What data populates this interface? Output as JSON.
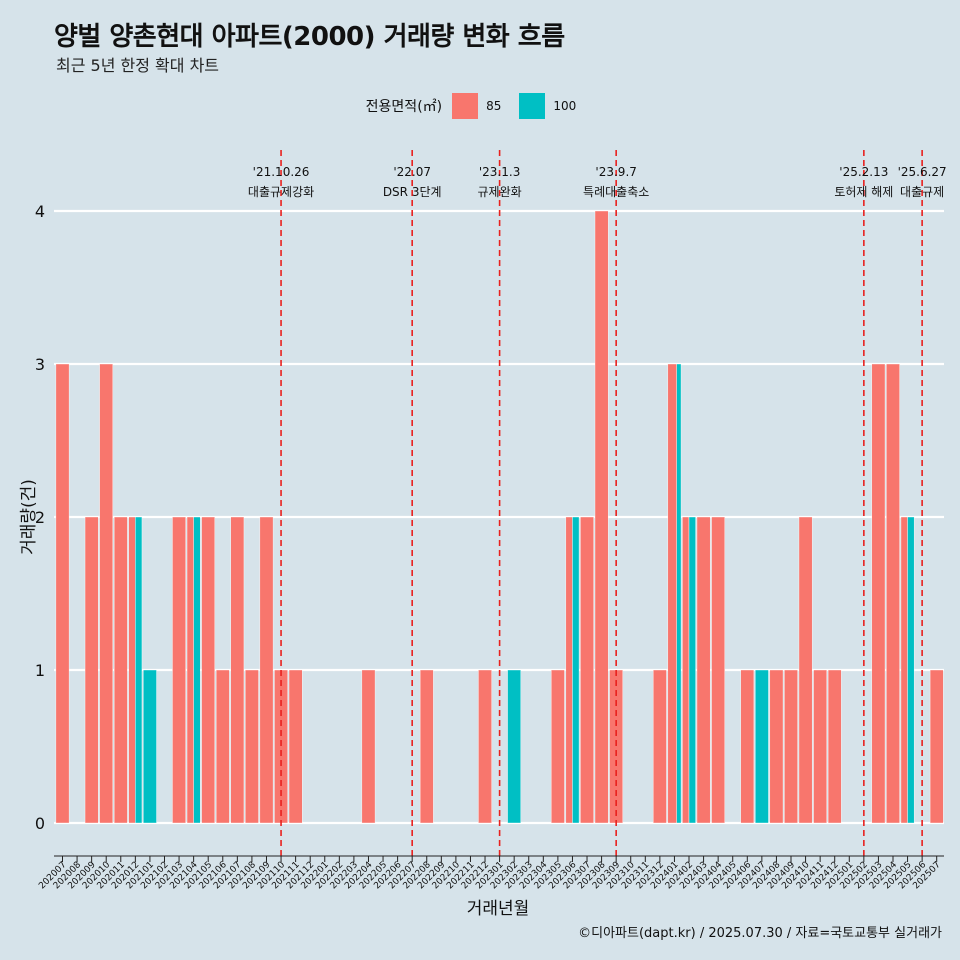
{
  "title": "양벌 양촌현대 아파트(2000) 거래량 변화 흐름",
  "subtitle": "최근 5년 한정 확대 차트",
  "caption": "©디아파트(dapt.kr) / 2025.07.30 / 자료=국토교통부 실거래가",
  "legend": {
    "title": "전용면적(㎡)",
    "items": [
      {
        "label": "85",
        "color": "#f8766d"
      },
      {
        "label": "100",
        "color": "#00bfc4"
      }
    ]
  },
  "chart_data": {
    "type": "bar",
    "xlabel": "거래년월",
    "ylabel": "거래량(건)",
    "ylim": [
      0,
      4
    ],
    "yticks": [
      0,
      1,
      2,
      3,
      4
    ],
    "categories": [
      "202007",
      "202008",
      "202009",
      "202010",
      "202011",
      "202012",
      "202101",
      "202102",
      "202103",
      "202104",
      "202105",
      "202106",
      "202107",
      "202108",
      "202109",
      "202110",
      "202111",
      "202112",
      "202201",
      "202202",
      "202203",
      "202204",
      "202205",
      "202206",
      "202207",
      "202208",
      "202209",
      "202210",
      "202211",
      "202212",
      "202301",
      "202302",
      "202303",
      "202304",
      "202305",
      "202306",
      "202307",
      "202308",
      "202309",
      "202310",
      "202311",
      "202312",
      "202401",
      "202402",
      "202403",
      "202404",
      "202405",
      "202406",
      "202407",
      "202408",
      "202409",
      "202410",
      "202411",
      "202412",
      "202501",
      "202502",
      "202503",
      "202504",
      "202505",
      "202506",
      "202507"
    ],
    "series": [
      {
        "name": "85",
        "values": [
          3,
          0,
          2,
          3,
          2,
          1,
          0,
          0,
          2,
          1,
          2,
          1,
          2,
          1,
          2,
          1,
          1,
          0,
          0,
          0,
          0,
          1,
          0,
          0,
          0,
          1,
          0,
          0,
          0,
          1,
          0,
          0,
          0,
          0,
          1,
          1,
          2,
          4,
          1,
          0,
          0,
          1,
          2,
          1,
          2,
          2,
          0,
          1,
          0,
          1,
          1,
          2,
          1,
          1,
          0,
          0,
          3,
          3,
          1,
          0,
          1
        ]
      },
      {
        "name": "100",
        "values": [
          0,
          0,
          0,
          0,
          0,
          1,
          1,
          0,
          0,
          1,
          0,
          0,
          0,
          0,
          0,
          0,
          0,
          0,
          0,
          0,
          0,
          0,
          0,
          0,
          0,
          0,
          0,
          0,
          0,
          0,
          0,
          1,
          0,
          0,
          0,
          1,
          0,
          0,
          0,
          0,
          0,
          0,
          1,
          1,
          0,
          0,
          0,
          0,
          1,
          0,
          0,
          0,
          0,
          0,
          0,
          0,
          0,
          0,
          1,
          0,
          0
        ]
      }
    ],
    "events": [
      {
        "month": "202110",
        "date": "'21.10.26",
        "label": "대출규제강화"
      },
      {
        "month": "202207",
        "date": "'22.07",
        "label": "DSR 3단계"
      },
      {
        "month": "202301",
        "date": "'23.1.3",
        "label": "규제완화"
      },
      {
        "month": "202309",
        "date": "'23.9.7",
        "label": "특례대출축소"
      },
      {
        "month": "202502",
        "date": "'25.2.13",
        "label": "토허제 해제"
      },
      {
        "month": "202506",
        "date": "'25.6.27",
        "label": "대출규제"
      }
    ],
    "grid": true,
    "legend_position": "top"
  }
}
